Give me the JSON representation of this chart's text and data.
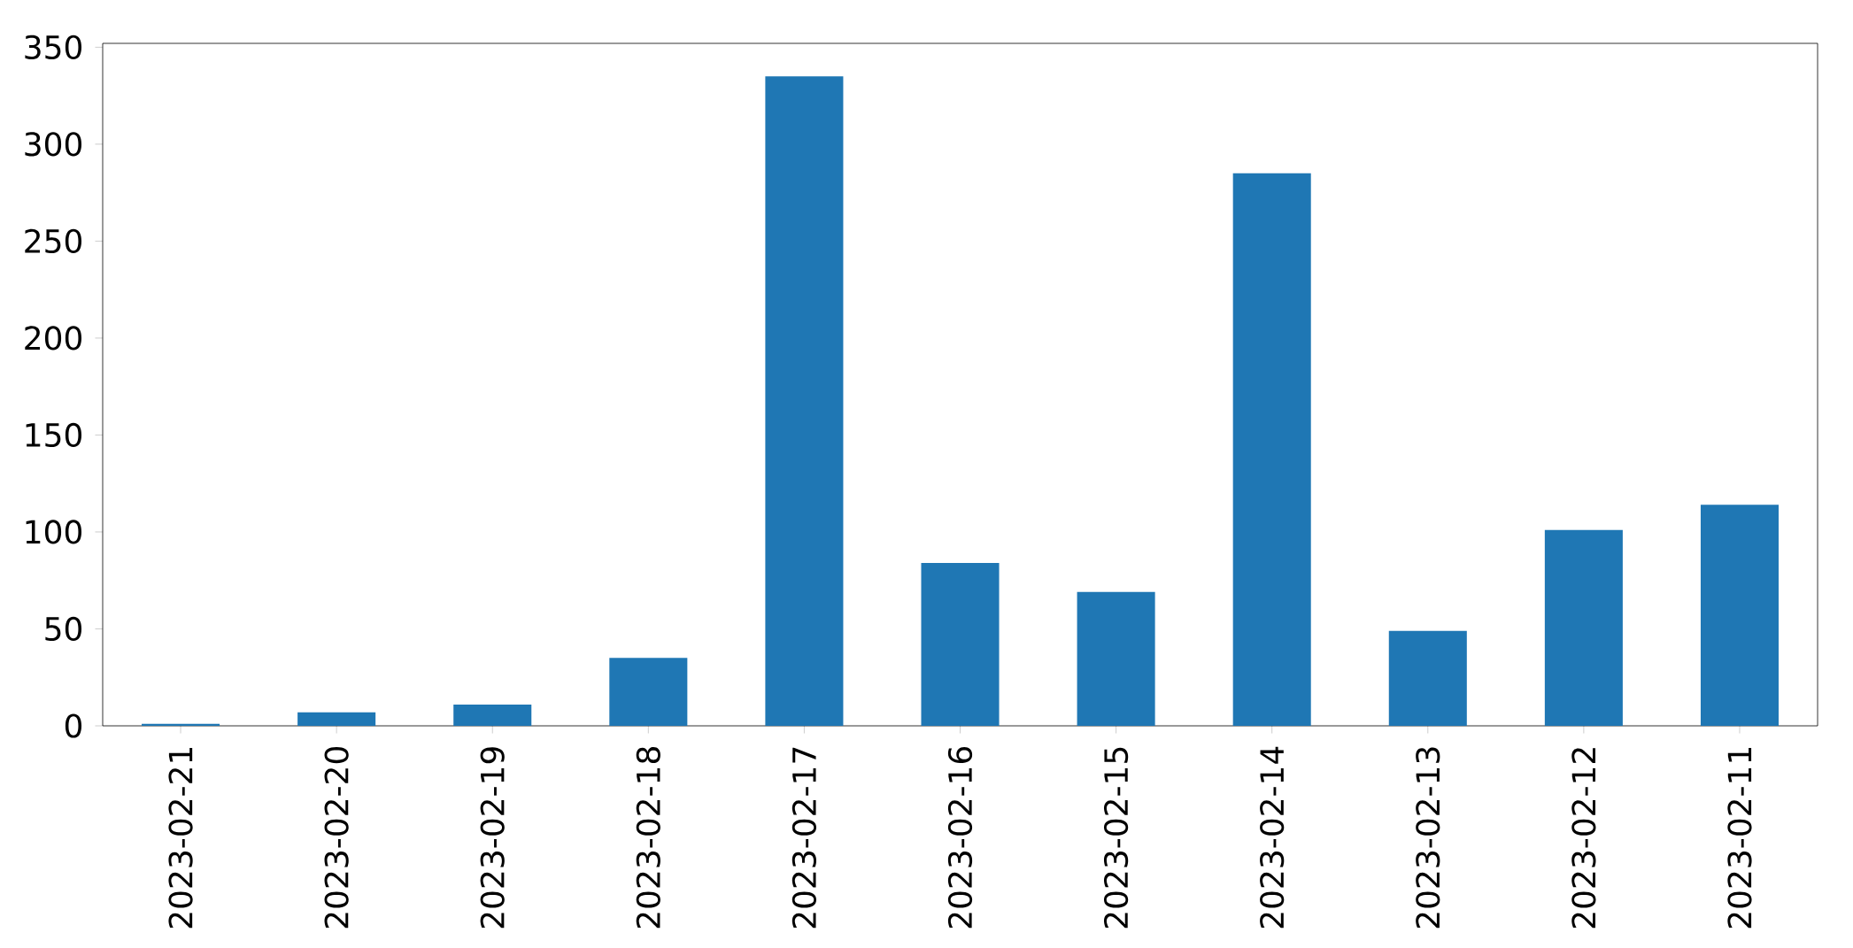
{
  "chart_data": {
    "type": "bar",
    "categories": [
      "2023-02-21",
      "2023-02-20",
      "2023-02-19",
      "2023-02-18",
      "2023-02-17",
      "2023-02-16",
      "2023-02-15",
      "2023-02-14",
      "2023-02-13",
      "2023-02-12",
      "2023-02-11"
    ],
    "values": [
      1,
      7,
      11,
      35,
      335,
      84,
      69,
      285,
      49,
      101,
      114
    ],
    "color": "#1f77b4",
    "ylim": [
      0,
      352
    ],
    "yticks": [
      0,
      50,
      100,
      150,
      200,
      250,
      300,
      350
    ]
  }
}
